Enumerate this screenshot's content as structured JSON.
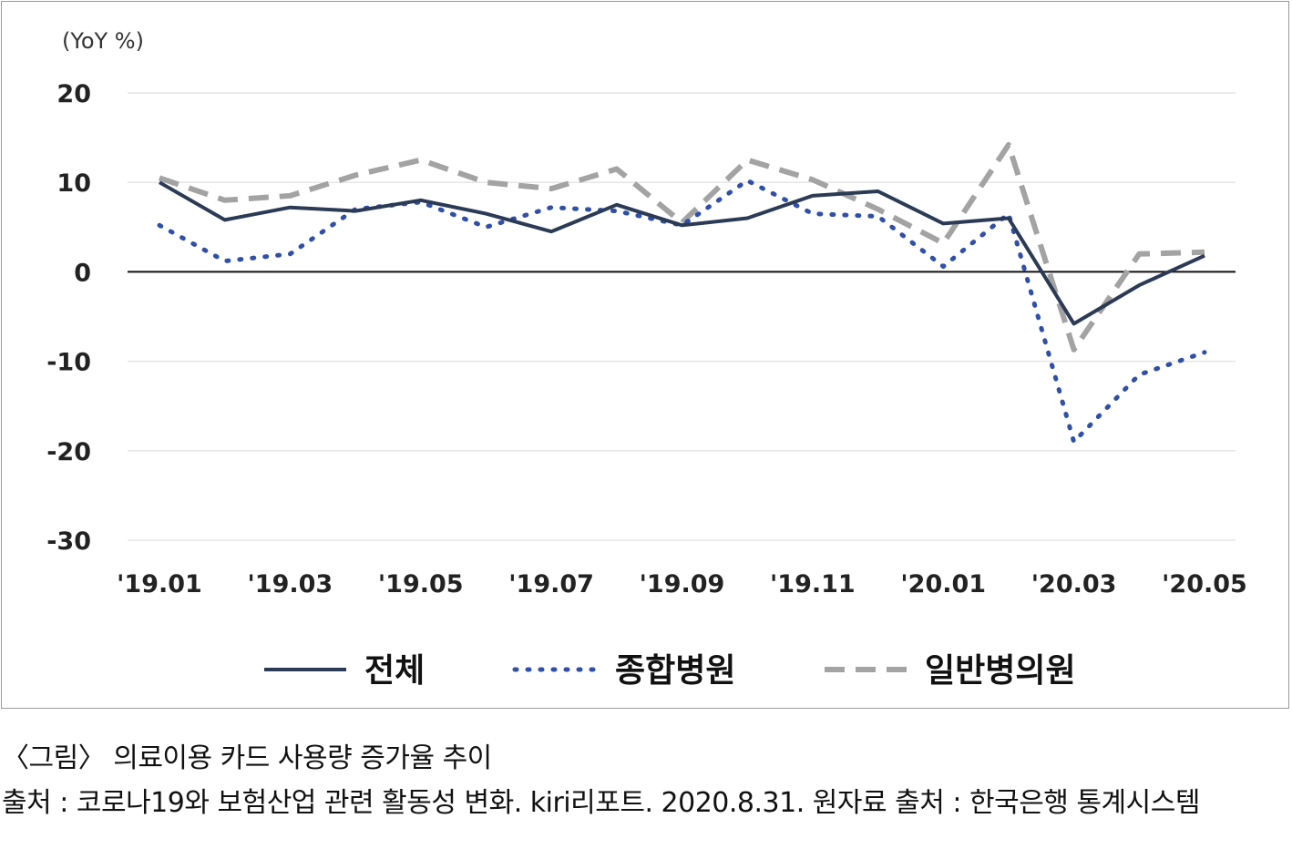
{
  "chart_data": {
    "type": "line",
    "unit_label": "(YoY %)",
    "ylim": [
      -30,
      20
    ],
    "yticks": [
      20,
      10,
      0,
      -10,
      -20,
      -30
    ],
    "categories": [
      "'19.01",
      "'19.02",
      "'19.03",
      "'19.04",
      "'19.05",
      "'19.06",
      "'19.07",
      "'19.08",
      "'19.09",
      "'19.10",
      "'19.11",
      "'19.12",
      "'20.01",
      "'20.02",
      "'20.03",
      "'20.04",
      "'20.05"
    ],
    "xtick_labels": [
      "'19.01",
      "'19.03",
      "'19.05",
      "'19.07",
      "'19.09",
      "'19.11",
      "'20.01",
      "'20.03",
      "'20.05"
    ],
    "grid": true,
    "legend_position": "bottom",
    "series": [
      {
        "name": "전체",
        "style": "solid",
        "color": "#2b3a55",
        "values": [
          10,
          5.8,
          7.2,
          6.8,
          8,
          6.5,
          4.5,
          7.5,
          5.2,
          6,
          8.5,
          9,
          5.4,
          6,
          -5.8,
          -1.5,
          1.8
        ]
      },
      {
        "name": "종합병원",
        "style": "dotted",
        "color": "#2f4fa8",
        "values": [
          5.2,
          1.2,
          2,
          7,
          7.8,
          5,
          7.2,
          6.8,
          5.2,
          10.2,
          6.5,
          6.2,
          0.6,
          6.5,
          -19,
          -11.5,
          -9
        ]
      },
      {
        "name": "일반병의원",
        "style": "dashed",
        "color": "#a3a3a3",
        "values": [
          10.5,
          8,
          8.5,
          10.8,
          12.5,
          10,
          9.3,
          11.5,
          5.5,
          12.5,
          10.3,
          7,
          3.2,
          14.2,
          -8.7,
          2,
          2.2
        ]
      }
    ]
  },
  "caption": {
    "figure": "〈그림〉 의료이용 카드 사용량 증가율 추이",
    "source": "출처 : 코로나19와 보험산업 관련 활동성 변화. kiri리포트. 2020.8.31. 원자료 출처 : 한국은행 통계시스템"
  }
}
